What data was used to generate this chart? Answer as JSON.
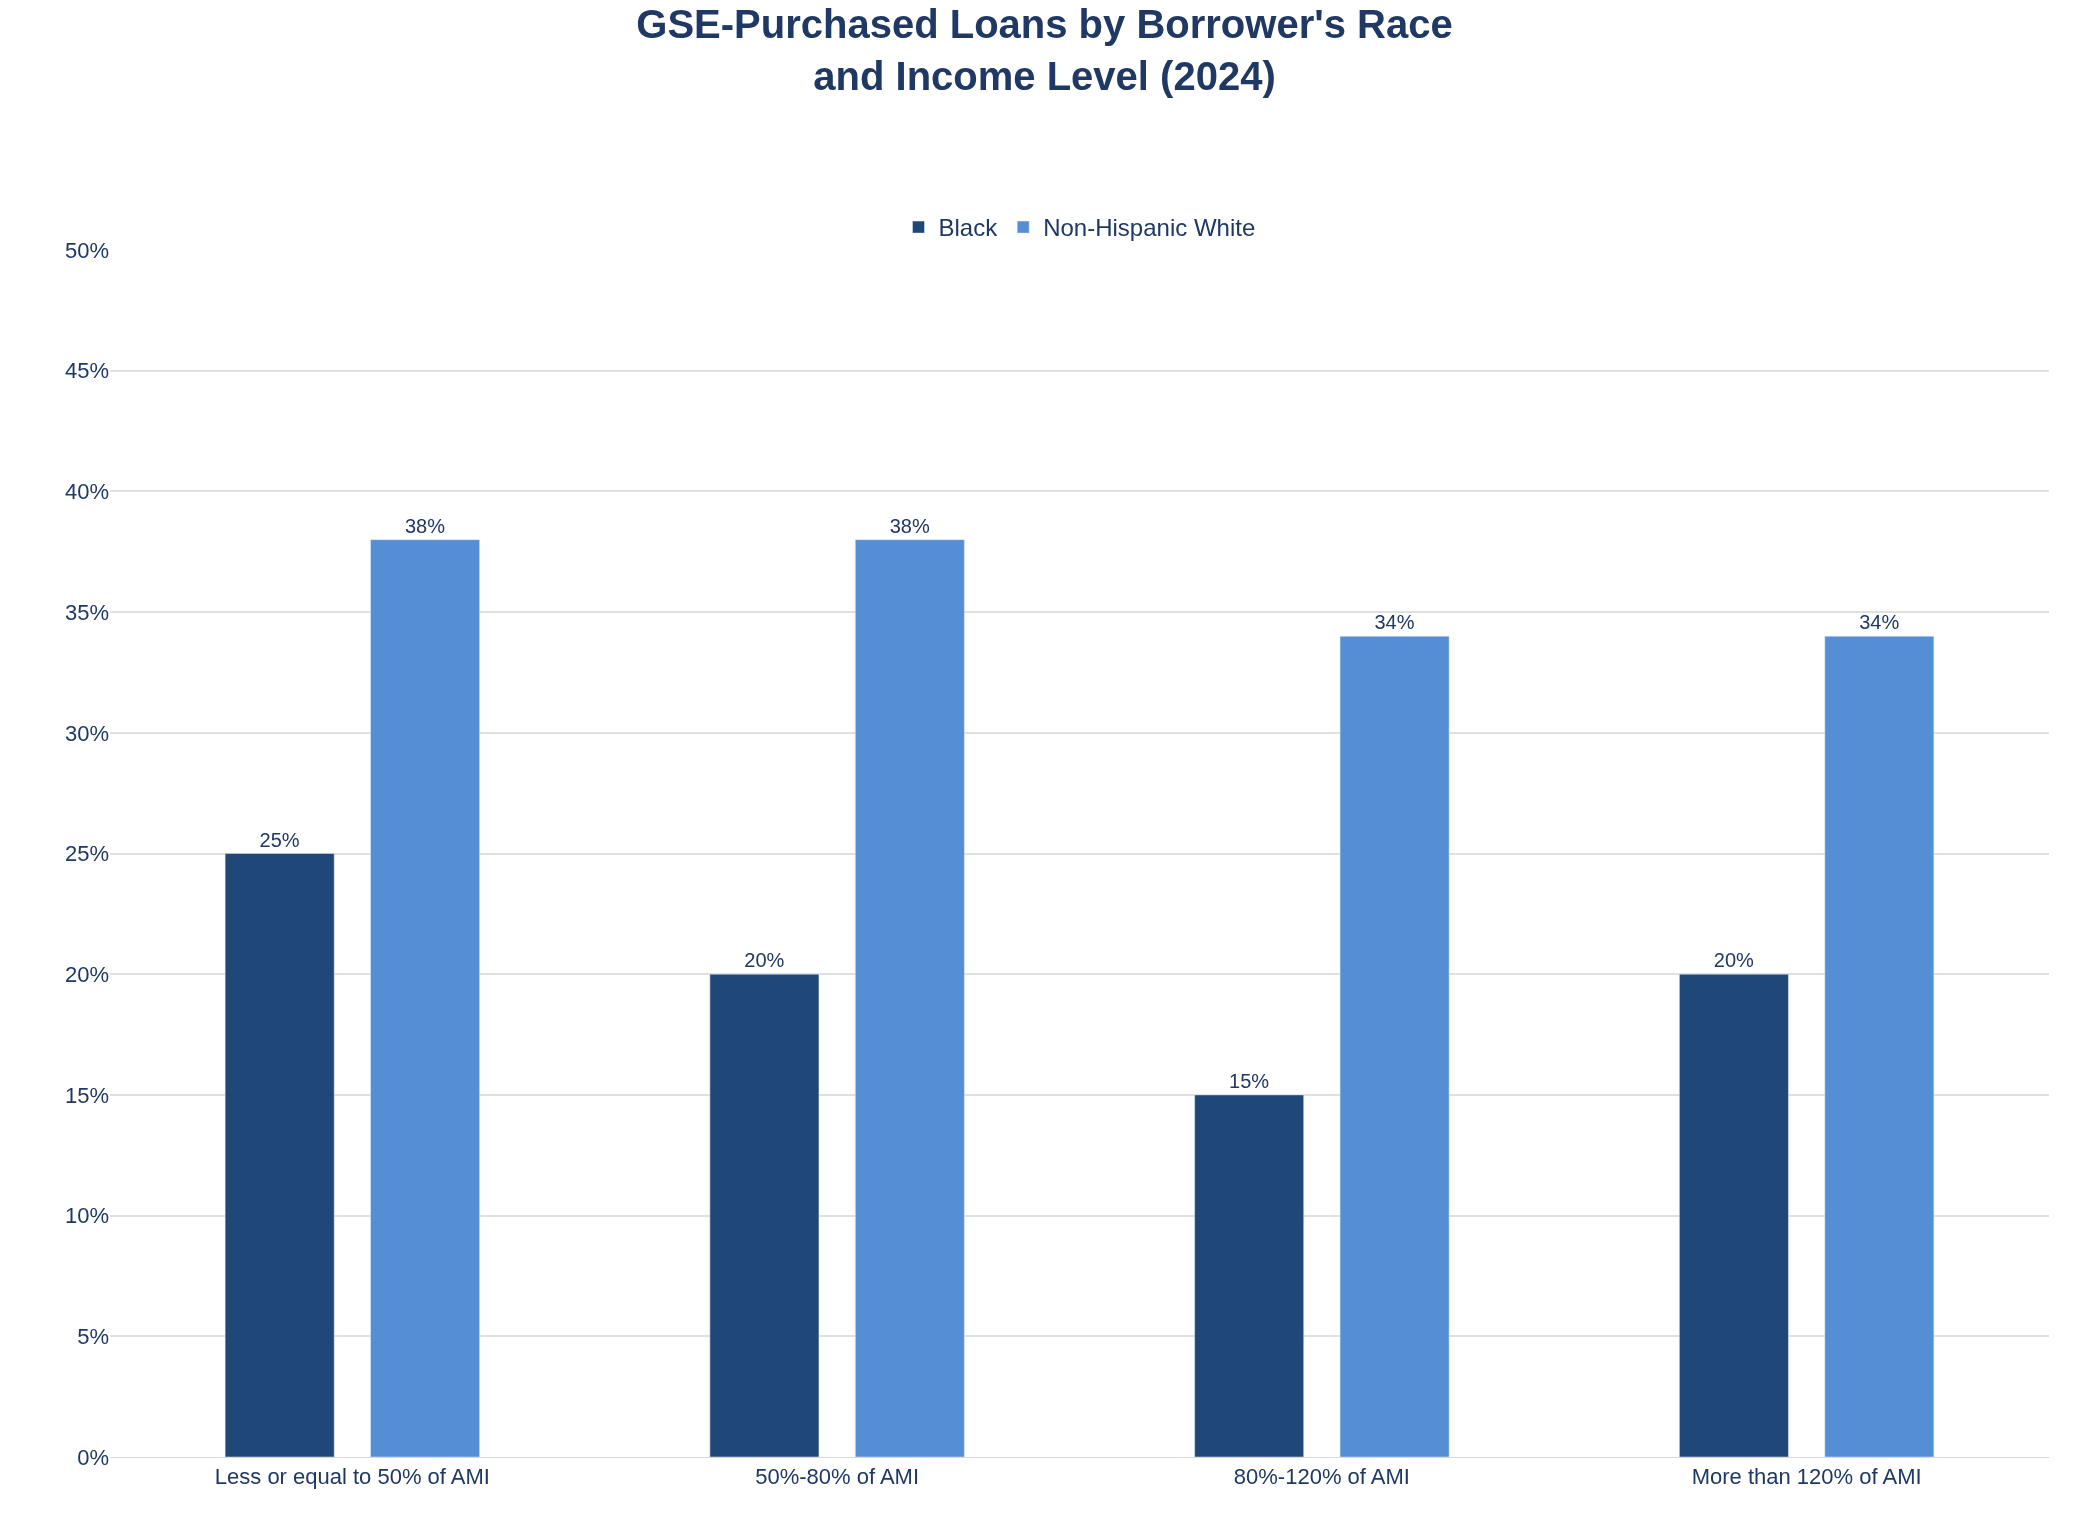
{
  "chart_data": {
    "type": "bar",
    "title": "GSE-Purchased Loans by Borrower's Race\nand Income Level (2024)",
    "categories": [
      "Less or equal to 50% of AMI",
      "50%-80% of AMI",
      "80%-120% of AMI",
      "More than 120% of AMI"
    ],
    "series": [
      {
        "name": "Black",
        "color": "#1f4778",
        "values": [
          25,
          20,
          15,
          20
        ],
        "value_labels": [
          "25%",
          "20%",
          "15%",
          "20%"
        ]
      },
      {
        "name": "Non-Hispanic White",
        "color": "#558ed5",
        "values": [
          38,
          38,
          34,
          34
        ],
        "value_labels": [
          "38%",
          "38%",
          "34%",
          "34%"
        ]
      }
    ],
    "ylim": [
      0,
      50
    ],
    "yticks": [
      {
        "value": 0,
        "label": "0%"
      },
      {
        "value": 5,
        "label": "5%"
      },
      {
        "value": 10,
        "label": "10%"
      },
      {
        "value": 15,
        "label": "15%"
      },
      {
        "value": 20,
        "label": "20%"
      },
      {
        "value": 25,
        "label": "25%"
      },
      {
        "value": 30,
        "label": "30%"
      },
      {
        "value": 35,
        "label": "35%"
      },
      {
        "value": 40,
        "label": "40%"
      },
      {
        "value": 45,
        "label": "45%"
      },
      {
        "value": 50,
        "label": "50%"
      }
    ],
    "grid": "y",
    "legend": "top"
  }
}
